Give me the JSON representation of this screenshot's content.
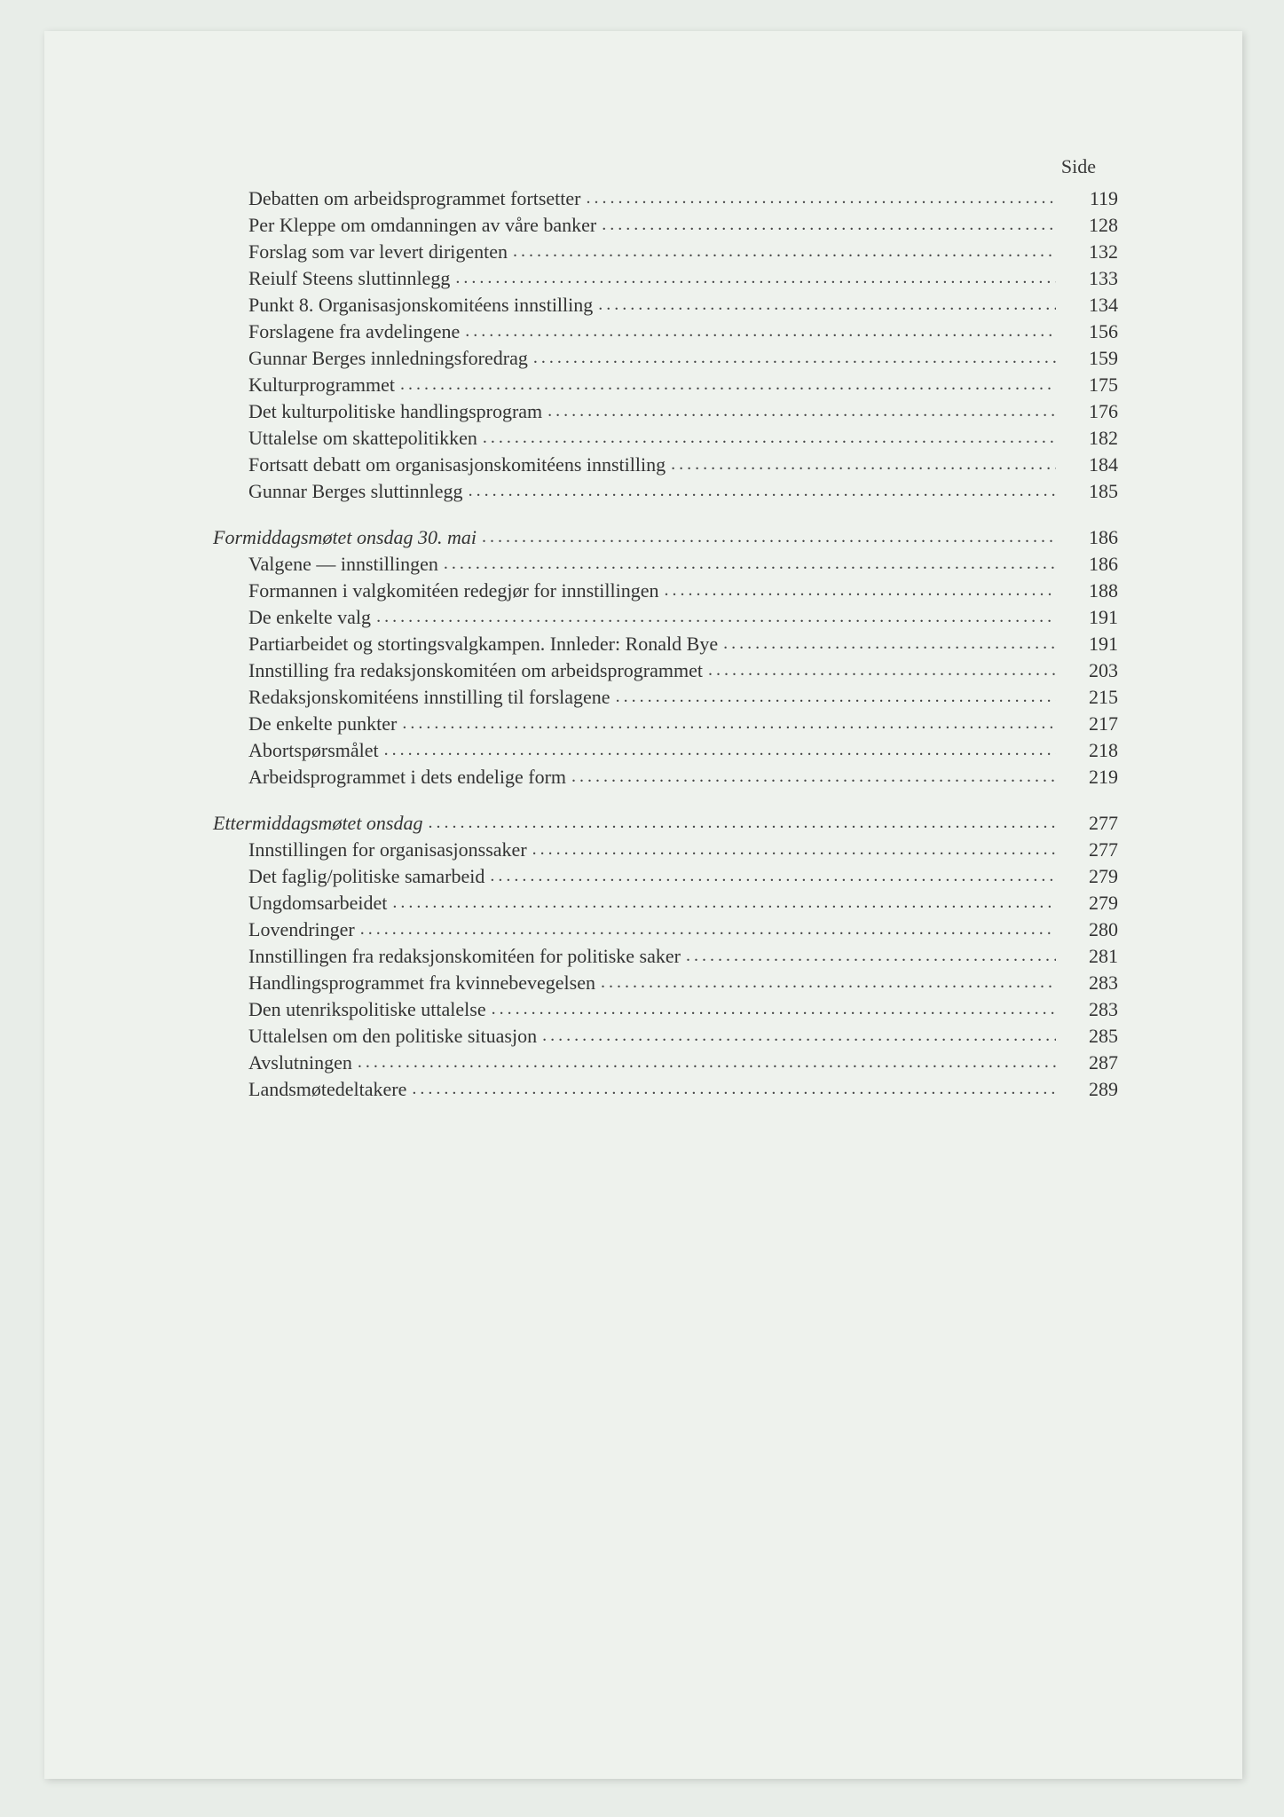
{
  "header": "Side",
  "sections": [
    {
      "heading": null,
      "entries": [
        {
          "label": "Debatten om arbeidsprogrammet fortsetter",
          "page": "119"
        },
        {
          "label": "Per Kleppe om omdanningen av våre banker",
          "page": "128"
        },
        {
          "label": "Forslag som var levert dirigenten",
          "page": "132"
        },
        {
          "label": "Reiulf Steens sluttinnlegg",
          "page": "133"
        },
        {
          "label": "Punkt 8. Organisasjonskomitéens innstilling",
          "page": "134"
        },
        {
          "label": "Forslagene fra avdelingene",
          "page": "156"
        },
        {
          "label": "Gunnar Berges innledningsforedrag",
          "page": "159"
        },
        {
          "label": "Kulturprogrammet",
          "page": "175"
        },
        {
          "label": "Det kulturpolitiske handlingsprogram",
          "page": "176"
        },
        {
          "label": "Uttalelse om skattepolitikken",
          "page": "182"
        },
        {
          "label": "Fortsatt debatt om organisasjonskomitéens innstilling",
          "page": "184"
        },
        {
          "label": "Gunnar Berges sluttinnlegg",
          "page": "185"
        }
      ]
    },
    {
      "heading": {
        "label": "Formiddagsmøtet onsdag 30. mai",
        "page": "186"
      },
      "entries": [
        {
          "label": "Valgene — innstillingen",
          "page": "186"
        },
        {
          "label": "Formannen i valgkomitéen redegjør for innstillingen",
          "page": "188"
        },
        {
          "label": "De enkelte valg",
          "page": "191"
        },
        {
          "label": "Partiarbeidet og stortingsvalgkampen. Innleder: Ronald Bye",
          "page": "191"
        },
        {
          "label": "Innstilling fra redaksjonskomitéen om arbeidsprogrammet",
          "page": "203"
        },
        {
          "label": "Redaksjonskomitéens innstilling til forslagene",
          "page": "215"
        },
        {
          "label": "De enkelte punkter",
          "page": "217"
        },
        {
          "label": "Abortspørsmålet",
          "page": "218"
        },
        {
          "label": "Arbeidsprogrammet i dets endelige form",
          "page": "219"
        }
      ]
    },
    {
      "heading": {
        "label": "Ettermiddagsmøtet onsdag",
        "page": "277"
      },
      "entries": [
        {
          "label": "Innstillingen for organisasjonssaker",
          "page": "277"
        },
        {
          "label": "Det faglig/politiske samarbeid",
          "page": "279"
        },
        {
          "label": "Ungdomsarbeidet",
          "page": "279"
        },
        {
          "label": "Lovendringer",
          "page": "280"
        },
        {
          "label": "Innstillingen fra redaksjonskomitéen for politiske saker",
          "page": "281"
        },
        {
          "label": "Handlingsprogrammet fra kvinnebevegelsen",
          "page": "283"
        },
        {
          "label": "Den utenrikspolitiske uttalelse",
          "page": "283"
        },
        {
          "label": "Uttalelsen om den politiske situasjon",
          "page": "285"
        },
        {
          "label": "Avslutningen",
          "page": "287"
        },
        {
          "label": "Landsmøtedeltakere",
          "page": "289"
        }
      ]
    }
  ],
  "colors": {
    "page_bg": "#eef2ed",
    "body_bg": "#e8ede8",
    "text": "#333333"
  },
  "typography": {
    "font_family": "Georgia, Times New Roman, serif",
    "font_size_pt": 16,
    "heading_style": "italic"
  }
}
